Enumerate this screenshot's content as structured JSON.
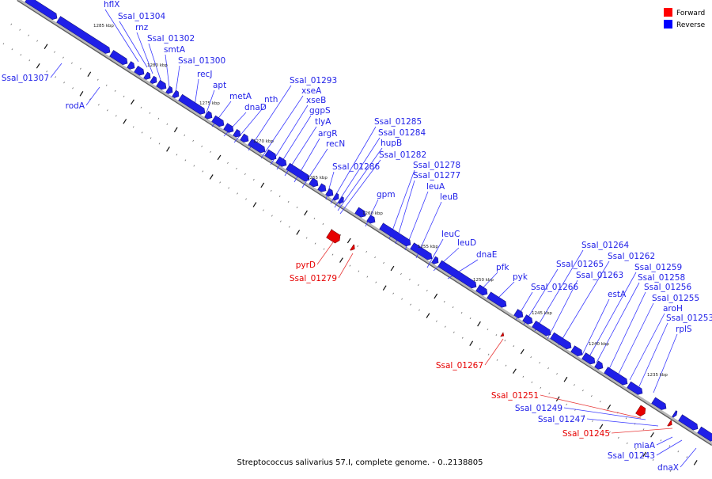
{
  "caption": "Streptococcus salivarius 57.I, complete genome. - 0..2138805",
  "legend": [
    {
      "label": "Forward",
      "color": "#ff0000"
    },
    {
      "label": "Reverse",
      "color": "#0000ff"
    }
  ],
  "colors": {
    "reverse": "#1f1fe8",
    "forward": "#e60000",
    "axis": "#8a8a8a",
    "leader": "#3a3aff",
    "leader_fwd": "#e83a3a"
  },
  "scale_ticks": [
    "1285 kbp",
    "1280 kbp",
    "1275 kbp",
    "1270 kbp",
    "1265 kbp",
    "1260 kbp",
    "1255 kbp",
    "1250 kbp",
    "1245 kbp",
    "1240 kbp",
    "1235 kbp"
  ],
  "genes_reverse_upper": [
    "hflX",
    "Ssal_01304",
    "rnz",
    "Ssal_01302",
    "smtA",
    "Ssal_01300",
    "recJ",
    "apt",
    "metA",
    "dnaD",
    "nth",
    "Ssal_01293",
    "xseA",
    "xseB",
    "ggpS",
    "tlyA",
    "argR",
    "recN",
    "Ssal_01286",
    "Ssal_01285",
    "Ssal_01284",
    "hupB",
    "Ssal_01282",
    "gpm",
    "Ssal_01278",
    "Ssal_01277",
    "leuA",
    "leuB",
    "leuC",
    "leuD",
    "dnaE",
    "pfk",
    "pyk",
    "Ssal_01266",
    "Ssal_01265",
    "Ssal_01264",
    "Ssal_01263",
    "Ssal_01262",
    "estA",
    "Ssal_01259",
    "Ssal_01258",
    "Ssal_01256",
    "Ssal_01255",
    "aroH",
    "Ssal_01253",
    "rplS"
  ],
  "genes_reverse_lower": [
    "Ssal_01307",
    "rodA",
    "Ssal_01249",
    "Ssal_01247",
    "miaA",
    "Ssal_01243",
    "dnaX"
  ],
  "genes_forward": [
    "pyrD",
    "Ssal_01279",
    "Ssal_01267",
    "Ssal_01251",
    "Ssal_01245"
  ]
}
